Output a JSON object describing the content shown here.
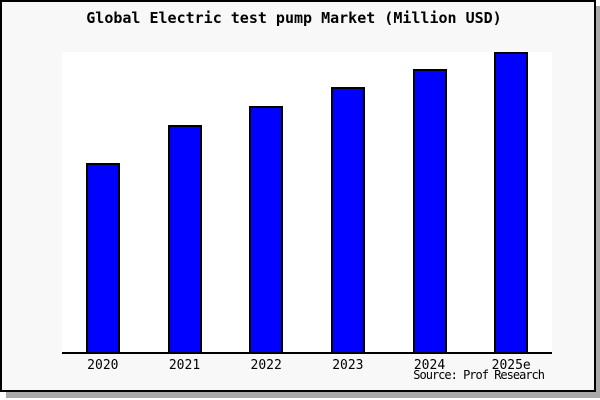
{
  "title": "Global Electric test pump Market (Million USD)",
  "source": "Source: Prof Research",
  "colors": {
    "bar_fill": "#0000ff",
    "bar_border": "#000000",
    "card_background": "#f8f8f8",
    "plot_background": "#ffffff",
    "axis": "#000000",
    "shadow": "#a9a9a9",
    "text": "#000000"
  },
  "chart_data": {
    "type": "bar",
    "title": "Global Electric test pump Market (Million USD)",
    "categories": [
      "2020",
      "2021",
      "2022",
      "2023",
      "2024",
      "2025e"
    ],
    "values": [
      63,
      75.5,
      82,
      88.2,
      94.2,
      100
    ],
    "xlabel": "",
    "ylabel": "",
    "ylim": [
      0,
      100
    ],
    "value_note": "no y-axis shown; values estimated relative to 2025e = 100",
    "grid": false,
    "legend_position": "none",
    "source": "Source: Prof Research"
  }
}
